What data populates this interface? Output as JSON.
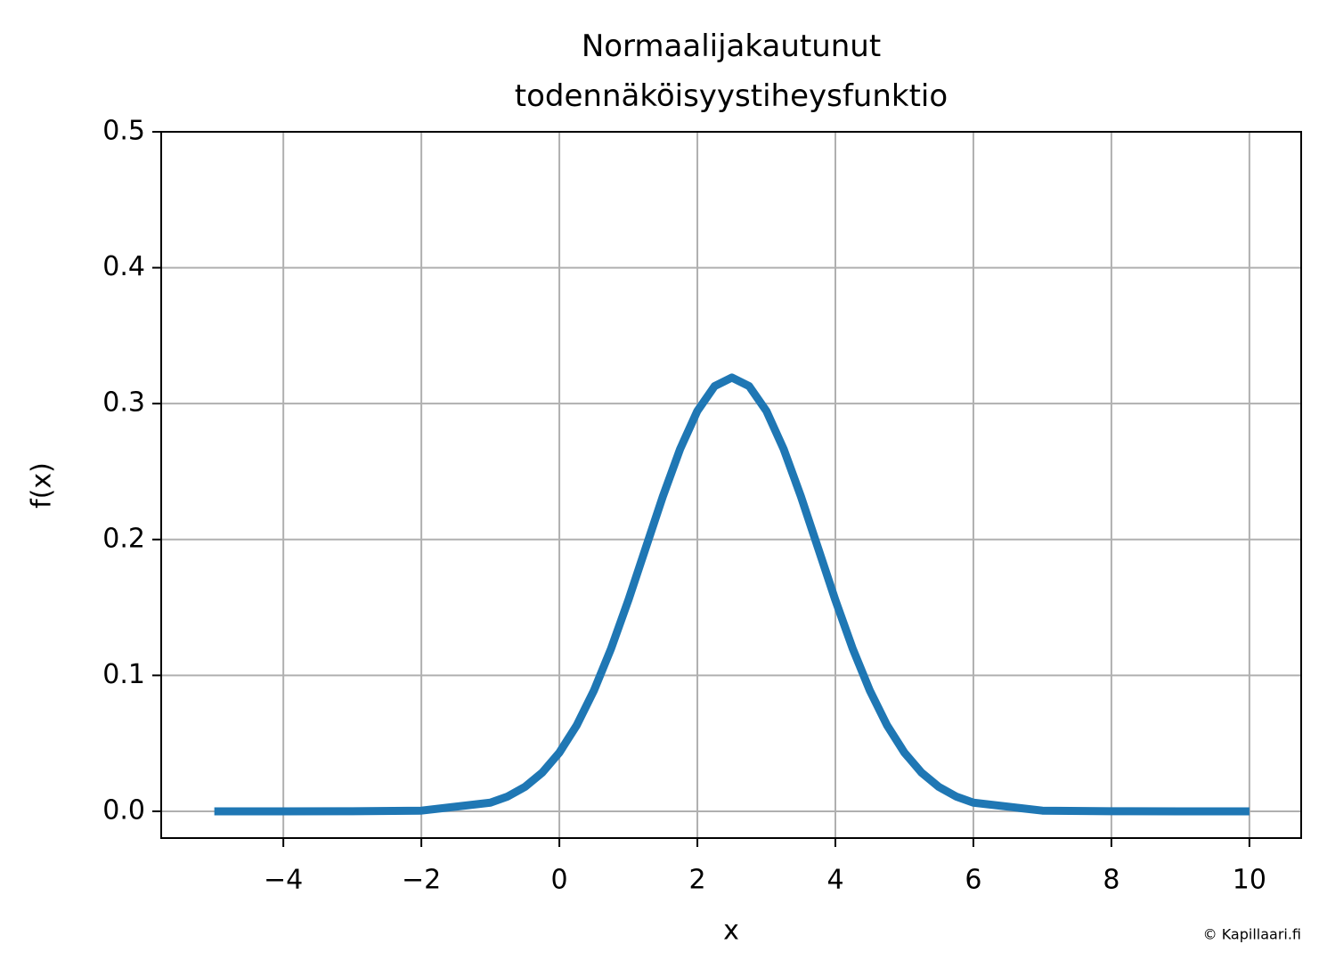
{
  "chart_data": {
    "type": "line",
    "title": "Normaalijakautunut\ntodennäköisyystiheysfunktio",
    "xlabel": "x",
    "ylabel": "f(x)",
    "watermark": "© Kapillaari.fi",
    "x": [
      -5,
      -4,
      -3,
      -2,
      -1,
      -0.75,
      -0.5,
      -0.25,
      0,
      0.25,
      0.5,
      0.75,
      1,
      1.25,
      1.5,
      1.75,
      2,
      2.25,
      2.5,
      2.75,
      3,
      3.25,
      3.5,
      3.75,
      4,
      4.25,
      4.5,
      4.75,
      5,
      5.25,
      5.5,
      5.75,
      6,
      7,
      8,
      9,
      10
    ],
    "series": [
      {
        "color": "#1f77b4",
        "values": [
          0.0,
          0.0,
          2e-05,
          0.00049,
          0.00633,
          0.01087,
          0.01791,
          0.02838,
          0.04319,
          0.06316,
          0.08874,
          0.11978,
          0.15535,
          0.19358,
          0.23175,
          0.26658,
          0.29462,
          0.31284,
          0.31915,
          0.31284,
          0.29462,
          0.26658,
          0.23175,
          0.19358,
          0.15535,
          0.11978,
          0.08874,
          0.06316,
          0.04319,
          0.02838,
          0.01791,
          0.01087,
          0.00633,
          0.00049,
          2e-05,
          0.0,
          0.0
        ]
      }
    ],
    "xlim": [
      -5.77,
      10.75
    ],
    "xticks": [
      {
        "value": -4,
        "label": "−4"
      },
      {
        "value": -2,
        "label": "−2"
      },
      0,
      2,
      4,
      6,
      8,
      10
    ],
    "ylim": [
      -0.0197,
      0.5
    ],
    "yticks": [
      {
        "value": 0,
        "label": "0.0"
      },
      0.1,
      0.2,
      0.3,
      0.4,
      0.5
    ],
    "grid": true
  }
}
